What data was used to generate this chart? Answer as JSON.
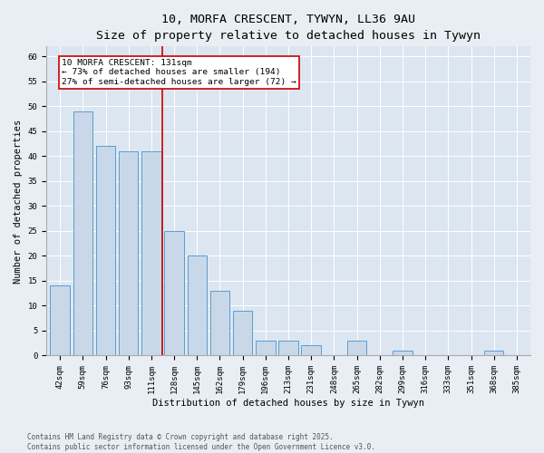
{
  "title1": "10, MORFA CRESCENT, TYWYN, LL36 9AU",
  "title2": "Size of property relative to detached houses in Tywyn",
  "xlabel": "Distribution of detached houses by size in Tywyn",
  "ylabel": "Number of detached properties",
  "categories": [
    "42sqm",
    "59sqm",
    "76sqm",
    "93sqm",
    "111sqm",
    "128sqm",
    "145sqm",
    "162sqm",
    "179sqm",
    "196sqm",
    "213sqm",
    "231sqm",
    "248sqm",
    "265sqm",
    "282sqm",
    "299sqm",
    "316sqm",
    "333sqm",
    "351sqm",
    "368sqm",
    "385sqm"
  ],
  "values": [
    14,
    49,
    42,
    41,
    41,
    25,
    20,
    13,
    9,
    3,
    3,
    2,
    0,
    3,
    0,
    1,
    0,
    0,
    0,
    1,
    0
  ],
  "bar_color": "#c8d8e8",
  "bar_edge_color": "#5b9bd5",
  "vline_color": "#cc0000",
  "vline_x": 4.5,
  "annotation_text": "10 MORFA CRESCENT: 131sqm\n← 73% of detached houses are smaller (194)\n27% of semi-detached houses are larger (72) →",
  "annotation_box_color": "#ffffff",
  "annotation_box_edge": "#cc0000",
  "ylim": [
    0,
    62
  ],
  "yticks": [
    0,
    5,
    10,
    15,
    20,
    25,
    30,
    35,
    40,
    45,
    50,
    55,
    60
  ],
  "bg_color": "#e8eef4",
  "plot_bg_color": "#dce6f0",
  "footer": "Contains HM Land Registry data © Crown copyright and database right 2025.\nContains public sector information licensed under the Open Government Licence v3.0.",
  "title_fontsize": 9.5,
  "subtitle_fontsize": 8.5,
  "axis_label_fontsize": 7.5,
  "tick_fontsize": 6.5,
  "annotation_fontsize": 6.8,
  "footer_fontsize": 5.5
}
